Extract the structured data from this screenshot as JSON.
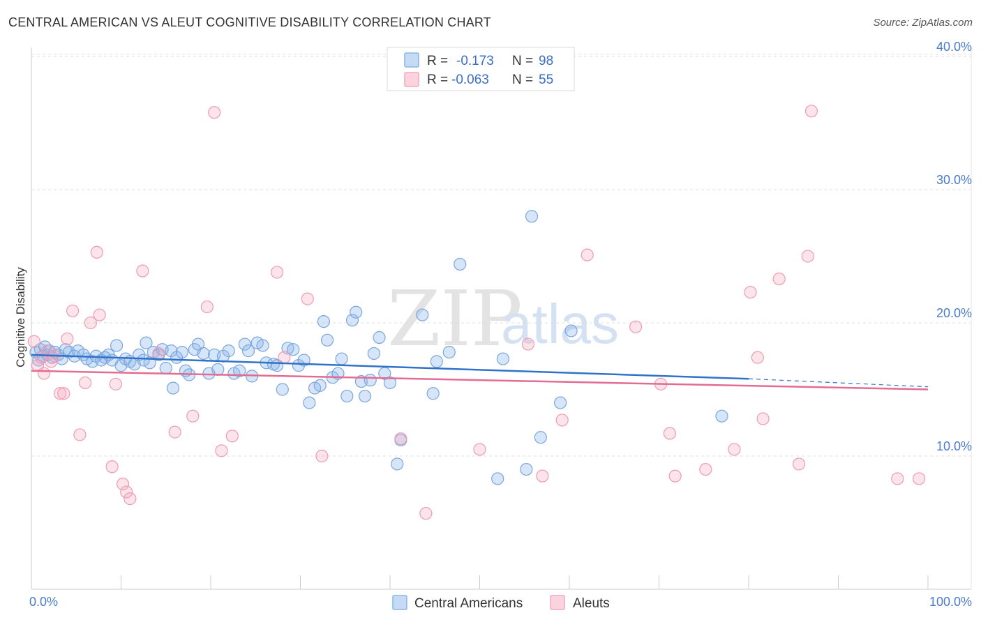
{
  "header": {
    "title": "CENTRAL AMERICAN VS ALEUT COGNITIVE DISABILITY CORRELATION CHART",
    "source": "Source: ZipAtlas.com"
  },
  "watermark": {
    "zip": "ZIP",
    "atlas": "atlas"
  },
  "legend": {
    "rows": [
      {
        "r_label": "R =",
        "r_value": "-0.173",
        "n_label": "N =",
        "n_value": "98",
        "color": "#8ab4e8"
      },
      {
        "r_label": "R =",
        "r_value": "-0.063",
        "n_label": "N =",
        "n_value": "55",
        "color": "#f4a7bd"
      }
    ]
  },
  "bottom_legend": {
    "items": [
      {
        "label": "Central Americans",
        "color": "#8ab4e8"
      },
      {
        "label": "Aleuts",
        "color": "#f4a7bd"
      }
    ]
  },
  "chart_data": {
    "type": "scatter",
    "title": "CENTRAL AMERICAN VS ALEUT COGNITIVE DISABILITY CORRELATION CHART",
    "xlabel": "",
    "ylabel": "Cognitive Disability",
    "xlim": [
      0,
      100
    ],
    "ylim": [
      0,
      42
    ],
    "x_tick_labels": [
      "0.0%",
      "100.0%"
    ],
    "y_ticks": [
      10,
      20,
      30,
      40
    ],
    "y_tick_labels": [
      "10.0%",
      "20.0%",
      "30.0%",
      "40.0%"
    ],
    "grid": true,
    "legend_position": "top-center",
    "series": [
      {
        "name": "Central Americans",
        "color": "#8ab4e8",
        "line_color": "#2f73c9",
        "trend": {
          "x0": 0,
          "y0": 17.6,
          "x1": 80,
          "y1": 15.8,
          "dashed_to_x": 100,
          "dashed_to_y": 15.2
        },
        "points": [
          [
            0.5,
            17.8
          ],
          [
            0.8,
            17.2
          ],
          [
            1.0,
            18.0
          ],
          [
            1.3,
            17.5
          ],
          [
            1.5,
            18.2
          ],
          [
            1.8,
            17.6
          ],
          [
            2.0,
            17.9
          ],
          [
            2.3,
            17.4
          ],
          [
            2.6,
            17.8
          ],
          [
            3.0,
            17.6
          ],
          [
            3.4,
            17.3
          ],
          [
            3.8,
            18.0
          ],
          [
            4.2,
            17.8
          ],
          [
            4.8,
            17.5
          ],
          [
            5.2,
            17.9
          ],
          [
            5.8,
            17.6
          ],
          [
            6.2,
            17.3
          ],
          [
            6.8,
            17.1
          ],
          [
            7.2,
            17.5
          ],
          [
            7.8,
            17.2
          ],
          [
            8.2,
            17.4
          ],
          [
            8.6,
            17.6
          ],
          [
            9.0,
            17.2
          ],
          [
            9.5,
            18.3
          ],
          [
            10.0,
            16.8
          ],
          [
            10.5,
            17.3
          ],
          [
            11.0,
            17.1
          ],
          [
            11.5,
            16.9
          ],
          [
            12.0,
            17.6
          ],
          [
            12.5,
            17.2
          ],
          [
            12.8,
            18.5
          ],
          [
            13.2,
            17.0
          ],
          [
            13.6,
            17.8
          ],
          [
            14.2,
            17.6
          ],
          [
            14.6,
            18.0
          ],
          [
            15.0,
            16.6
          ],
          [
            15.6,
            17.9
          ],
          [
            16.2,
            17.4
          ],
          [
            16.8,
            17.8
          ],
          [
            17.2,
            16.4
          ],
          [
            17.6,
            16.1
          ],
          [
            18.2,
            18.0
          ],
          [
            18.6,
            18.4
          ],
          [
            19.2,
            17.7
          ],
          [
            19.8,
            16.2
          ],
          [
            20.4,
            17.6
          ],
          [
            20.8,
            16.5
          ],
          [
            21.4,
            17.5
          ],
          [
            22.0,
            17.9
          ],
          [
            22.6,
            16.2
          ],
          [
            23.2,
            16.4
          ],
          [
            23.8,
            18.4
          ],
          [
            24.2,
            17.9
          ],
          [
            24.6,
            16.0
          ],
          [
            25.2,
            18.5
          ],
          [
            25.8,
            18.3
          ],
          [
            26.2,
            17.0
          ],
          [
            27.0,
            16.9
          ],
          [
            27.4,
            16.8
          ],
          [
            28.0,
            15.0
          ],
          [
            28.6,
            18.1
          ],
          [
            29.2,
            18.0
          ],
          [
            29.8,
            16.8
          ],
          [
            30.4,
            17.2
          ],
          [
            31.0,
            14.0
          ],
          [
            31.6,
            15.1
          ],
          [
            32.2,
            15.3
          ],
          [
            32.6,
            20.1
          ],
          [
            33.0,
            18.7
          ],
          [
            33.6,
            15.9
          ],
          [
            34.2,
            16.2
          ],
          [
            34.6,
            17.3
          ],
          [
            35.2,
            14.5
          ],
          [
            35.8,
            20.2
          ],
          [
            36.2,
            20.8
          ],
          [
            36.8,
            15.6
          ],
          [
            37.2,
            14.5
          ],
          [
            37.8,
            15.7
          ],
          [
            38.2,
            17.7
          ],
          [
            38.8,
            18.9
          ],
          [
            39.4,
            16.2
          ],
          [
            40.0,
            15.5
          ],
          [
            40.8,
            9.4
          ],
          [
            41.2,
            11.2
          ],
          [
            43.6,
            20.6
          ],
          [
            44.8,
            14.7
          ],
          [
            45.2,
            17.1
          ],
          [
            46.6,
            17.8
          ],
          [
            47.8,
            24.4
          ],
          [
            52.0,
            8.3
          ],
          [
            52.6,
            17.3
          ],
          [
            55.8,
            28.0
          ],
          [
            55.2,
            9.0
          ],
          [
            60.2,
            19.4
          ],
          [
            59.0,
            14.0
          ],
          [
            56.8,
            11.4
          ],
          [
            77.0,
            13.0
          ],
          [
            15.8,
            15.1
          ]
        ]
      },
      {
        "name": "Aleuts",
        "color": "#f4a7bd",
        "line_color": "#e46b91",
        "trend": {
          "x0": 0,
          "y0": 16.4,
          "x1": 100,
          "y1": 15.0
        },
        "points": [
          [
            0.3,
            18.6
          ],
          [
            0.7,
            16.8
          ],
          [
            1.1,
            17.4
          ],
          [
            1.4,
            16.2
          ],
          [
            1.8,
            17.9
          ],
          [
            2.2,
            17.1
          ],
          [
            2.6,
            17.5
          ],
          [
            3.2,
            14.7
          ],
          [
            3.6,
            14.7
          ],
          [
            4.0,
            18.8
          ],
          [
            4.6,
            20.9
          ],
          [
            5.4,
            11.6
          ],
          [
            6.0,
            15.5
          ],
          [
            6.6,
            20.0
          ],
          [
            7.3,
            25.3
          ],
          [
            7.6,
            20.6
          ],
          [
            9.0,
            9.2
          ],
          [
            9.4,
            15.4
          ],
          [
            10.2,
            7.9
          ],
          [
            10.6,
            7.3
          ],
          [
            11.0,
            6.8
          ],
          [
            12.4,
            23.9
          ],
          [
            14.2,
            17.7
          ],
          [
            16.0,
            11.8
          ],
          [
            18.0,
            13.0
          ],
          [
            19.6,
            21.2
          ],
          [
            20.4,
            35.8
          ],
          [
            21.2,
            10.4
          ],
          [
            22.4,
            11.5
          ],
          [
            27.4,
            23.8
          ],
          [
            28.2,
            17.4
          ],
          [
            30.8,
            21.8
          ],
          [
            32.4,
            10.0
          ],
          [
            41.2,
            11.3
          ],
          [
            44.0,
            5.7
          ],
          [
            50.0,
            10.5
          ],
          [
            55.4,
            18.4
          ],
          [
            57.0,
            8.5
          ],
          [
            59.2,
            12.7
          ],
          [
            62.0,
            25.1
          ],
          [
            67.4,
            19.7
          ],
          [
            70.2,
            15.4
          ],
          [
            71.2,
            11.7
          ],
          [
            71.8,
            8.5
          ],
          [
            75.2,
            9.0
          ],
          [
            78.4,
            10.5
          ],
          [
            80.2,
            22.3
          ],
          [
            81.0,
            17.4
          ],
          [
            81.6,
            12.8
          ],
          [
            83.4,
            23.3
          ],
          [
            85.6,
            9.4
          ],
          [
            86.6,
            25.0
          ],
          [
            87.0,
            35.9
          ],
          [
            96.6,
            8.3
          ],
          [
            99.0,
            8.3
          ]
        ]
      }
    ]
  }
}
